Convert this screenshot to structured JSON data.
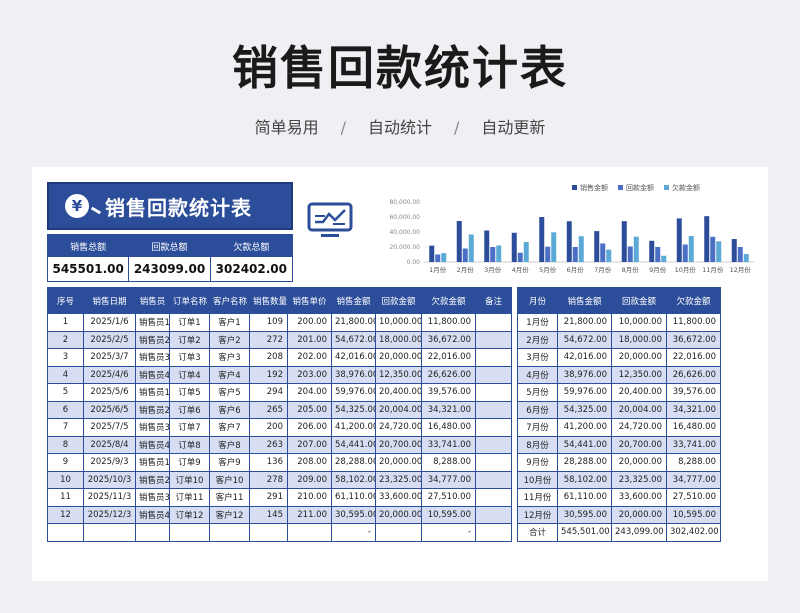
{
  "header": {
    "title": "销售回款统计表",
    "tags": [
      "简单易用",
      "自动统计",
      "自动更新"
    ],
    "separator": "/"
  },
  "banner": {
    "icon": "yen-icon",
    "yen_symbol": "¥",
    "title": "销售回款统计表"
  },
  "summary": {
    "sales_label": "销售总额",
    "sales_value": "545501.00",
    "paid_label": "回款总额",
    "paid_value": "243099.00",
    "owed_label": "欠款总额",
    "owed_value": "302402.00"
  },
  "colors": {
    "primary": "#2c4d99",
    "sales": "#2c4d99",
    "paid": "#4a6fc4",
    "owed": "#5aa9d6",
    "alt_row": "#d7def3"
  },
  "chart_data": {
    "type": "bar",
    "categories": [
      "1月份",
      "2月份",
      "3月份",
      "4月份",
      "5月份",
      "6月份",
      "7月份",
      "8月份",
      "9月份",
      "10月份",
      "11月份",
      "12月份"
    ],
    "series": [
      {
        "name": "销售金额",
        "values": [
          21800,
          54672,
          42016,
          38976,
          59976,
          54325,
          41200,
          54441,
          28288,
          58102,
          61110,
          30595
        ]
      },
      {
        "name": "回款金额",
        "values": [
          10000,
          18000,
          20000,
          12350,
          20400,
          20004,
          24720,
          20700,
          20000,
          23325,
          33600,
          20000
        ]
      },
      {
        "name": "欠款金额",
        "values": [
          11800,
          36672,
          22016,
          26626,
          39576,
          34321,
          16480,
          33741,
          8288,
          34777,
          27510,
          10595
        ]
      }
    ],
    "y_ticks": [
      "0.00",
      "20,000.00",
      "40,000.00",
      "60,000.00",
      "80,000.00"
    ],
    "ylim": [
      0,
      80000
    ],
    "legend_position": "top-right",
    "grid": false
  },
  "main_table": {
    "headers": [
      "序号",
      "销售日期",
      "销售员",
      "订单名称",
      "客户名称",
      "销售数量",
      "销售单价",
      "销售金额",
      "回款金额",
      "欠款金额",
      "备注"
    ],
    "rows": [
      [
        "1",
        "2025/1/6",
        "销售员1",
        "订单1",
        "客户1",
        "109",
        "200.00",
        "21,800.00",
        "10,000.00",
        "11,800.00",
        ""
      ],
      [
        "2",
        "2025/2/5",
        "销售员2",
        "订单2",
        "客户2",
        "272",
        "201.00",
        "54,672.00",
        "18,000.00",
        "36,672.00",
        ""
      ],
      [
        "3",
        "2025/3/7",
        "销售员3",
        "订单3",
        "客户3",
        "208",
        "202.00",
        "42,016.00",
        "20,000.00",
        "22,016.00",
        ""
      ],
      [
        "4",
        "2025/4/6",
        "销售员4",
        "订单4",
        "客户4",
        "192",
        "203.00",
        "38,976.00",
        "12,350.00",
        "26,626.00",
        ""
      ],
      [
        "5",
        "2025/5/6",
        "销售员1",
        "订单5",
        "客户5",
        "294",
        "204.00",
        "59,976.00",
        "20,400.00",
        "39,576.00",
        ""
      ],
      [
        "6",
        "2025/6/5",
        "销售员2",
        "订单6",
        "客户6",
        "265",
        "205.00",
        "54,325.00",
        "20,004.00",
        "34,321.00",
        ""
      ],
      [
        "7",
        "2025/7/5",
        "销售员3",
        "订单7",
        "客户7",
        "200",
        "206.00",
        "41,200.00",
        "24,720.00",
        "16,480.00",
        ""
      ],
      [
        "8",
        "2025/8/4",
        "销售员4",
        "订单8",
        "客户8",
        "263",
        "207.00",
        "54,441.00",
        "20,700.00",
        "33,741.00",
        ""
      ],
      [
        "9",
        "2025/9/3",
        "销售员1",
        "订单9",
        "客户9",
        "136",
        "208.00",
        "28,288.00",
        "20,000.00",
        "8,288.00",
        ""
      ],
      [
        "10",
        "2025/10/3",
        "销售员2",
        "订单10",
        "客户10",
        "278",
        "209.00",
        "58,102.00",
        "23,325.00",
        "34,777.00",
        ""
      ],
      [
        "11",
        "2025/11/3",
        "销售员3",
        "订单11",
        "客户11",
        "291",
        "210.00",
        "61,110.00",
        "33,600.00",
        "27,510.00",
        ""
      ],
      [
        "12",
        "2025/12/3",
        "销售员4",
        "订单12",
        "客户12",
        "145",
        "211.00",
        "30,595.00",
        "20,000.00",
        "10,595.00",
        ""
      ],
      [
        "",
        "",
        "",
        "",
        "",
        "",
        "",
        "-",
        "",
        "-",
        ""
      ]
    ]
  },
  "month_table": {
    "headers": [
      "月份",
      "销售金额",
      "回款金额",
      "欠款金额"
    ],
    "rows": [
      [
        "1月份",
        "21,800.00",
        "10,000.00",
        "11,800.00"
      ],
      [
        "2月份",
        "54,672.00",
        "18,000.00",
        "36,672.00"
      ],
      [
        "3月份",
        "42,016.00",
        "20,000.00",
        "22,016.00"
      ],
      [
        "4月份",
        "38,976.00",
        "12,350.00",
        "26,626.00"
      ],
      [
        "5月份",
        "59,976.00",
        "20,400.00",
        "39,576.00"
      ],
      [
        "6月份",
        "54,325.00",
        "20,004.00",
        "34,321.00"
      ],
      [
        "7月份",
        "41,200.00",
        "24,720.00",
        "16,480.00"
      ],
      [
        "8月份",
        "54,441.00",
        "20,700.00",
        "33,741.00"
      ],
      [
        "9月份",
        "28,288.00",
        "20,000.00",
        "8,288.00"
      ],
      [
        "10月份",
        "58,102.00",
        "23,325.00",
        "34,777.00"
      ],
      [
        "11月份",
        "61,110.00",
        "33,600.00",
        "27,510.00"
      ],
      [
        "12月份",
        "30,595.00",
        "20,000.00",
        "10,595.00"
      ]
    ],
    "total": [
      "合计",
      "545,501.00",
      "243,099.00",
      "302,402.00"
    ]
  }
}
